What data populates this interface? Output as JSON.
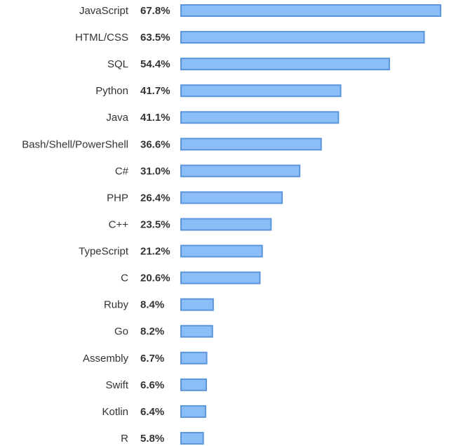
{
  "chart_data": {
    "type": "bar",
    "orientation": "horizontal",
    "categories": [
      "JavaScript",
      "HTML/CSS",
      "SQL",
      "Python",
      "Java",
      "Bash/Shell/PowerShell",
      "C#",
      "PHP",
      "C++",
      "TypeScript",
      "C",
      "Ruby",
      "Go",
      "Assembly",
      "Swift",
      "Kotlin",
      "R"
    ],
    "values": [
      67.8,
      63.5,
      54.4,
      41.7,
      41.1,
      36.6,
      31.0,
      26.4,
      23.5,
      21.2,
      20.6,
      8.4,
      8.2,
      6.7,
      6.6,
      6.4,
      5.8
    ],
    "value_labels": [
      "67.8%",
      "63.5%",
      "54.4%",
      "41.7%",
      "41.1%",
      "36.6%",
      "31.0%",
      "26.4%",
      "23.5%",
      "21.2%",
      "20.6%",
      "8.4%",
      "8.2%",
      "6.7%",
      "6.6%",
      "6.4%",
      "5.8%"
    ],
    "unit": "%",
    "grid": false,
    "colors": {
      "bar_fill": "#8bbdf6",
      "bar_border": "#5b95dc",
      "text": "#333333"
    }
  }
}
